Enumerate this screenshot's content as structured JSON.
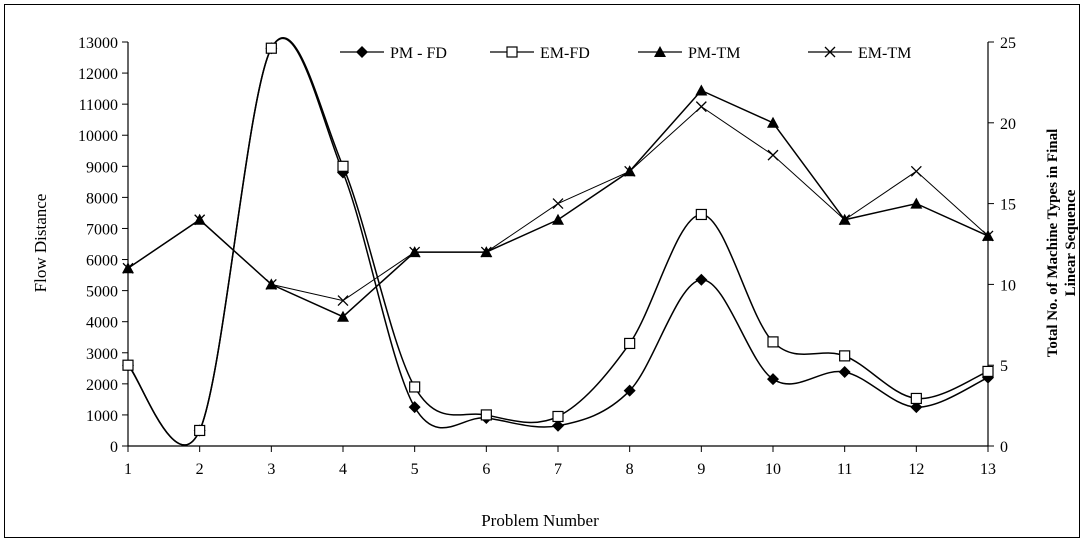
{
  "chart_data": {
    "type": "line",
    "title": "",
    "xlabel": "Problem Number",
    "ylabel": "Flow Distance",
    "y2label_line1": "Total No. of Machine Types in Final",
    "y2label_line2": "Linear Sequence",
    "x": [
      1,
      2,
      3,
      4,
      5,
      6,
      7,
      8,
      9,
      10,
      11,
      12,
      13
    ],
    "ylim": [
      0,
      13000
    ],
    "y_ticks": [
      0,
      1000,
      2000,
      3000,
      4000,
      5000,
      6000,
      7000,
      8000,
      9000,
      10000,
      11000,
      12000,
      13000
    ],
    "y2lim": [
      0,
      25
    ],
    "y2_ticks": [
      0,
      5,
      10,
      15,
      20,
      25
    ],
    "grid": false,
    "legend_position": "top",
    "series": [
      {
        "name": "PM - FD",
        "axis": "left",
        "marker": "diamond",
        "smooth": true,
        "values": [
          2600,
          500,
          12800,
          8800,
          1250,
          900,
          650,
          1780,
          5350,
          2150,
          2380,
          1250,
          2200
        ]
      },
      {
        "name": "EM-FD",
        "axis": "left",
        "marker": "square-open",
        "smooth": true,
        "values": [
          2600,
          500,
          12800,
          9000,
          1900,
          1000,
          950,
          3300,
          7450,
          3350,
          2900,
          1530,
          2400
        ]
      },
      {
        "name": "PM-TM",
        "axis": "right",
        "marker": "triangle",
        "smooth": false,
        "values": [
          11,
          14,
          10,
          8,
          12,
          12,
          14,
          17,
          22,
          20,
          14,
          15,
          13
        ]
      },
      {
        "name": "EM-TM",
        "axis": "right",
        "marker": "x",
        "smooth": false,
        "values": [
          11,
          14,
          10,
          9,
          12,
          12,
          15,
          17,
          21,
          18,
          14,
          17,
          13
        ]
      }
    ]
  }
}
